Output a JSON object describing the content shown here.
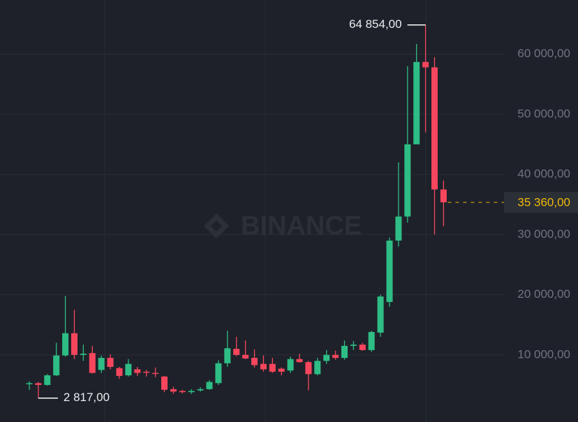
{
  "chart_data": {
    "type": "candlestick",
    "watermark": "BINANCE",
    "up_color": "#2ebd85",
    "down_color": "#f6465d",
    "ylim": [
      -1160,
      69000
    ],
    "yticks": [
      {
        "value": 10000,
        "label": "10 000,00"
      },
      {
        "value": 20000,
        "label": "20 000,00"
      },
      {
        "value": 30000,
        "label": "30 000,00"
      },
      {
        "value": 40000,
        "label": "40 000,00"
      },
      {
        "value": 50000,
        "label": "50 000,00"
      },
      {
        "value": 60000,
        "label": "60 000,00"
      }
    ],
    "grid": true,
    "open": [
      5200,
      5300,
      5000,
      6600,
      9900,
      13600,
      10000,
      10300,
      7500,
      9500,
      7800,
      6600,
      7600,
      7200,
      7000,
      6400,
      4300,
      4000,
      3800,
      4100,
      4300,
      5300,
      8600,
      11000,
      10000,
      9500,
      8500,
      8500,
      7700,
      7400,
      9300,
      8800,
      6800,
      9000,
      10000,
      9500,
      11500,
      11700,
      10800,
      13700,
      18800,
      29000,
      33000,
      45000,
      58700,
      57800,
      37500
    ],
    "high": [
      5600,
      5500,
      6800,
      12000,
      19800,
      17500,
      11700,
      11500,
      9900,
      10100,
      8000,
      9300,
      8000,
      7500,
      7900,
      6500,
      4700,
      4200,
      4300,
      4600,
      5800,
      9100,
      14000,
      13000,
      12400,
      10900,
      9900,
      9500,
      7900,
      9700,
      10200,
      9000,
      9500,
      10800,
      10700,
      12400,
      12300,
      12000,
      14000,
      20000,
      29500,
      42000,
      58000,
      61700,
      64854,
      59500,
      39000
    ],
    "low": [
      4200,
      2817,
      4900,
      6500,
      9700,
      9300,
      9000,
      6900,
      7000,
      7600,
      6000,
      6400,
      6500,
      6400,
      6300,
      3800,
      3500,
      3600,
      3500,
      3900,
      4200,
      5000,
      8000,
      9800,
      9300,
      7900,
      7200,
      7000,
      6600,
      7000,
      8700,
      4100,
      6600,
      8500,
      9200,
      9200,
      10800,
      10700,
      10500,
      13000,
      18000,
      28000,
      32000,
      45000,
      47000,
      30000,
      31400
    ],
    "close": [
      5300,
      5000,
      6600,
      9900,
      13600,
      10000,
      10200,
      7000,
      9500,
      8000,
      6500,
      8500,
      7000,
      7100,
      6900,
      4200,
      3900,
      3800,
      4000,
      4300,
      5500,
      8600,
      11100,
      10000,
      9400,
      8300,
      7600,
      7200,
      7200,
      9300,
      8800,
      6800,
      9000,
      10000,
      9500,
      11500,
      11700,
      10800,
      13800,
      19700,
      29000,
      33000,
      45000,
      58700,
      57800,
      37500,
      35360
    ],
    "high_label": {
      "value": 64854,
      "label": "64 854,00"
    },
    "low_label": {
      "value": 2817,
      "label": "2 817,00"
    },
    "last_price": {
      "value": 35360,
      "label": "35 360,00"
    }
  }
}
